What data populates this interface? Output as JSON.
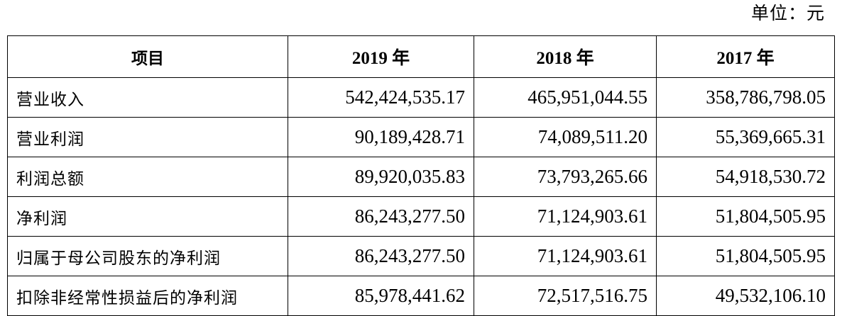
{
  "unit_label": "单位：元",
  "table": {
    "headers": [
      "项目",
      "2019 年",
      "2018 年",
      "2017 年"
    ],
    "rows": [
      {
        "label": "营业收入",
        "values": [
          "542,424,535.17",
          "465,951,044.55",
          "358,786,798.05"
        ]
      },
      {
        "label": "营业利润",
        "values": [
          "90,189,428.71",
          "74,089,511.20",
          "55,369,665.31"
        ]
      },
      {
        "label": "利润总额",
        "values": [
          "89,920,035.83",
          "73,793,265.66",
          "54,918,530.72"
        ]
      },
      {
        "label": "净利润",
        "values": [
          "86,243,277.50",
          "71,124,903.61",
          "51,804,505.95"
        ]
      },
      {
        "label": "归属于母公司股东的净利润",
        "values": [
          "86,243,277.50",
          "71,124,903.61",
          "51,804,505.95"
        ]
      },
      {
        "label": "扣除非经常性损益后的净利润",
        "values": [
          "85,978,441.62",
          "72,517,516.75",
          "49,532,106.10"
        ]
      }
    ]
  }
}
